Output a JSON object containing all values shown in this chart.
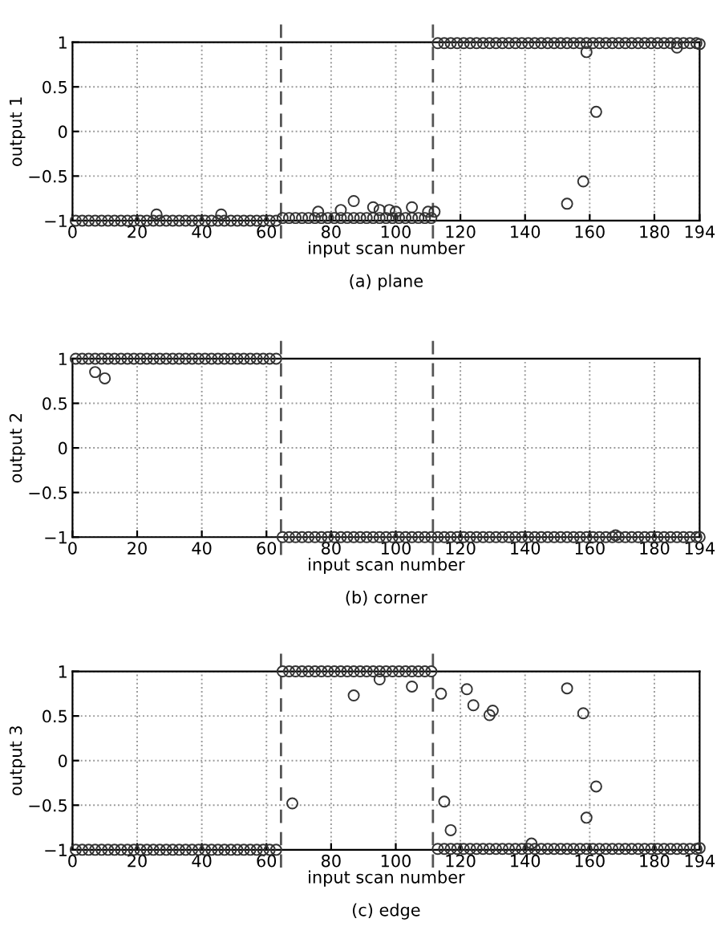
{
  "chart_data": [
    {
      "type": "scatter",
      "title": "(a) plane",
      "xlabel": "input scan number",
      "ylabel": "output 1",
      "marker": "circle",
      "grid": true,
      "xlim": [
        0,
        194
      ],
      "ylim": [
        -1,
        1
      ],
      "xticks": [
        0,
        20,
        40,
        60,
        80,
        100,
        120,
        140,
        160,
        180,
        194
      ],
      "yticks": [
        -1,
        -0.5,
        0,
        0.5,
        1
      ],
      "ref_lines": [
        {
          "axis": "x",
          "value": 64.5,
          "line_style": "dashed",
          "color": "#555555"
        },
        {
          "axis": "x",
          "value": 111.5,
          "line_style": "dashed",
          "color": "#555555"
        }
      ],
      "series": [
        {
          "color": "#333333",
          "x": [
            1,
            3,
            5,
            7,
            9,
            11,
            13,
            15,
            17,
            19,
            21,
            23,
            25,
            27,
            29,
            31,
            33,
            35,
            37,
            39,
            41,
            43,
            45,
            47,
            49,
            51,
            53,
            55,
            57,
            59,
            61,
            63,
            65,
            67,
            69,
            71,
            73,
            75,
            77,
            79,
            81,
            83,
            85,
            87,
            89,
            91,
            93,
            95,
            97,
            99,
            101,
            103,
            105,
            107,
            109,
            111,
            113,
            115,
            117,
            119,
            121,
            123,
            125,
            127,
            129,
            131,
            133,
            135,
            137,
            139,
            141,
            143,
            145,
            147,
            149,
            151,
            153,
            155,
            157,
            159,
            161,
            163,
            165,
            167,
            169,
            171,
            173,
            175,
            177,
            179,
            181,
            183,
            185,
            187,
            189,
            191,
            193,
            26,
            46,
            76,
            83,
            87,
            93,
            95,
            98,
            100,
            105,
            110,
            112,
            153,
            158,
            159,
            162,
            187,
            194
          ],
          "values": [
            -1,
            -1,
            -1,
            -1,
            -1,
            -1,
            -1,
            -1,
            -1,
            -1,
            -1,
            -1,
            -1,
            -1,
            -1,
            -1,
            -1,
            -1,
            -1,
            -1,
            -1,
            -1,
            -1,
            -1,
            -1,
            -1,
            -1,
            -1,
            -1,
            -1,
            -1,
            -1,
            -0.97,
            -0.97,
            -0.97,
            -0.97,
            -0.97,
            -0.97,
            -0.97,
            -0.97,
            -0.97,
            -0.97,
            -0.97,
            -0.97,
            -0.97,
            -0.97,
            -0.97,
            -0.97,
            -0.97,
            -0.97,
            -0.97,
            -0.97,
            -0.97,
            -0.97,
            -0.97,
            -0.97,
            0.99,
            0.99,
            0.99,
            0.99,
            0.99,
            0.99,
            0.99,
            0.99,
            0.99,
            0.99,
            0.99,
            0.99,
            0.99,
            0.99,
            0.99,
            0.99,
            0.99,
            0.99,
            0.99,
            0.99,
            0.99,
            0.99,
            0.99,
            0.99,
            0.99,
            0.99,
            0.99,
            0.99,
            0.99,
            0.99,
            0.99,
            0.99,
            0.99,
            0.99,
            0.99,
            0.99,
            0.99,
            0.99,
            0.99,
            0.99,
            0.99,
            -0.93,
            -0.93,
            -0.9,
            -0.88,
            -0.78,
            -0.85,
            -0.88,
            -0.88,
            -0.9,
            -0.85,
            -0.9,
            -0.9,
            -0.81,
            -0.56,
            0.89,
            0.22,
            0.94,
            0.98
          ]
        }
      ]
    },
    {
      "type": "scatter",
      "title": "(b) corner",
      "xlabel": "input scan number",
      "ylabel": "output 2",
      "marker": "circle",
      "grid": true,
      "xlim": [
        0,
        194
      ],
      "ylim": [
        -1,
        1
      ],
      "xticks": [
        0,
        20,
        40,
        60,
        80,
        100,
        120,
        140,
        160,
        180,
        194
      ],
      "yticks": [
        -1,
        -0.5,
        0,
        0.5,
        1
      ],
      "ref_lines": [
        {
          "axis": "x",
          "value": 64.5,
          "line_style": "dashed",
          "color": "#555555"
        },
        {
          "axis": "x",
          "value": 111.5,
          "line_style": "dashed",
          "color": "#555555"
        }
      ],
      "series": [
        {
          "color": "#333333",
          "x": [
            1,
            3,
            5,
            7,
            9,
            11,
            13,
            15,
            17,
            19,
            21,
            23,
            25,
            27,
            29,
            31,
            33,
            35,
            37,
            39,
            41,
            43,
            45,
            47,
            49,
            51,
            53,
            55,
            57,
            59,
            61,
            63,
            65,
            67,
            69,
            71,
            73,
            75,
            77,
            79,
            81,
            83,
            85,
            87,
            89,
            91,
            93,
            95,
            97,
            99,
            101,
            103,
            105,
            107,
            109,
            111,
            113,
            115,
            117,
            119,
            121,
            123,
            125,
            127,
            129,
            131,
            133,
            135,
            137,
            139,
            141,
            143,
            145,
            147,
            149,
            151,
            153,
            155,
            157,
            159,
            161,
            163,
            165,
            167,
            169,
            171,
            173,
            175,
            177,
            179,
            181,
            183,
            185,
            187,
            189,
            191,
            193,
            7,
            10,
            168,
            194
          ],
          "values": [
            1,
            1,
            1,
            1,
            1,
            1,
            1,
            1,
            1,
            1,
            1,
            1,
            1,
            1,
            1,
            1,
            1,
            1,
            1,
            1,
            1,
            1,
            1,
            1,
            1,
            1,
            1,
            1,
            1,
            1,
            1,
            1,
            -1,
            -1,
            -1,
            -1,
            -1,
            -1,
            -1,
            -1,
            -1,
            -1,
            -1,
            -1,
            -1,
            -1,
            -1,
            -1,
            -1,
            -1,
            -1,
            -1,
            -1,
            -1,
            -1,
            -1,
            -1,
            -1,
            -1,
            -1,
            -1,
            -1,
            -1,
            -1,
            -1,
            -1,
            -1,
            -1,
            -1,
            -1,
            -1,
            -1,
            -1,
            -1,
            -1,
            -1,
            -1,
            -1,
            -1,
            -1,
            -1,
            -1,
            -1,
            -1,
            -1,
            -1,
            -1,
            -1,
            -1,
            -1,
            -1,
            -1,
            -1,
            -1,
            -1,
            -1,
            -1,
            0.85,
            0.78,
            -0.98,
            -1
          ]
        }
      ]
    },
    {
      "type": "scatter",
      "title": "(c) edge",
      "xlabel": "input scan number",
      "ylabel": "output 3",
      "marker": "circle",
      "grid": true,
      "xlim": [
        0,
        194
      ],
      "ylim": [
        -1,
        1
      ],
      "xticks": [
        0,
        20,
        40,
        60,
        80,
        100,
        120,
        140,
        160,
        180,
        194
      ],
      "yticks": [
        -1,
        -0.5,
        0,
        0.5,
        1
      ],
      "ref_lines": [
        {
          "axis": "x",
          "value": 64.5,
          "line_style": "dashed",
          "color": "#555555"
        },
        {
          "axis": "x",
          "value": 111.5,
          "line_style": "dashed",
          "color": "#555555"
        }
      ],
      "series": [
        {
          "color": "#333333",
          "x": [
            1,
            3,
            5,
            7,
            9,
            11,
            13,
            15,
            17,
            19,
            21,
            23,
            25,
            27,
            29,
            31,
            33,
            35,
            37,
            39,
            41,
            43,
            45,
            47,
            49,
            51,
            53,
            55,
            57,
            59,
            61,
            63,
            65,
            67,
            69,
            71,
            73,
            75,
            77,
            79,
            81,
            83,
            85,
            87,
            89,
            91,
            93,
            95,
            97,
            99,
            101,
            103,
            105,
            107,
            109,
            111,
            113,
            115,
            117,
            119,
            121,
            123,
            125,
            127,
            129,
            131,
            133,
            135,
            137,
            139,
            141,
            143,
            145,
            147,
            149,
            151,
            153,
            155,
            157,
            159,
            161,
            163,
            165,
            167,
            169,
            171,
            173,
            175,
            177,
            179,
            181,
            183,
            185,
            187,
            189,
            191,
            193,
            68,
            87,
            95,
            105,
            114,
            115,
            117,
            122,
            124,
            129,
            130,
            142,
            153,
            158,
            159,
            162,
            194
          ],
          "values": [
            -1,
            -1,
            -1,
            -1,
            -1,
            -1,
            -1,
            -1,
            -1,
            -1,
            -1,
            -1,
            -1,
            -1,
            -1,
            -1,
            -1,
            -1,
            -1,
            -1,
            -1,
            -1,
            -1,
            -1,
            -1,
            -1,
            -1,
            -1,
            -1,
            -1,
            -1,
            -1,
            1,
            1,
            1,
            1,
            1,
            1,
            1,
            1,
            1,
            1,
            1,
            1,
            1,
            1,
            1,
            1,
            1,
            1,
            1,
            1,
            1,
            1,
            1,
            1,
            -0.99,
            -0.99,
            -0.99,
            -0.99,
            -0.99,
            -0.99,
            -0.99,
            -0.99,
            -0.99,
            -0.99,
            -0.99,
            -0.99,
            -0.99,
            -0.99,
            -0.99,
            -0.99,
            -0.99,
            -0.99,
            -0.99,
            -0.99,
            -0.99,
            -0.99,
            -0.99,
            -0.99,
            -0.99,
            -0.99,
            -0.99,
            -0.99,
            -0.99,
            -0.99,
            -0.99,
            -0.99,
            -0.99,
            -0.99,
            -0.99,
            -0.99,
            -0.99,
            -0.99,
            -0.99,
            -0.99,
            -0.99,
            -0.48,
            0.73,
            0.91,
            0.83,
            0.75,
            -0.46,
            -0.78,
            0.8,
            0.62,
            0.51,
            0.56,
            -0.93,
            0.81,
            0.53,
            -0.64,
            -0.29,
            -0.98
          ]
        }
      ]
    }
  ]
}
